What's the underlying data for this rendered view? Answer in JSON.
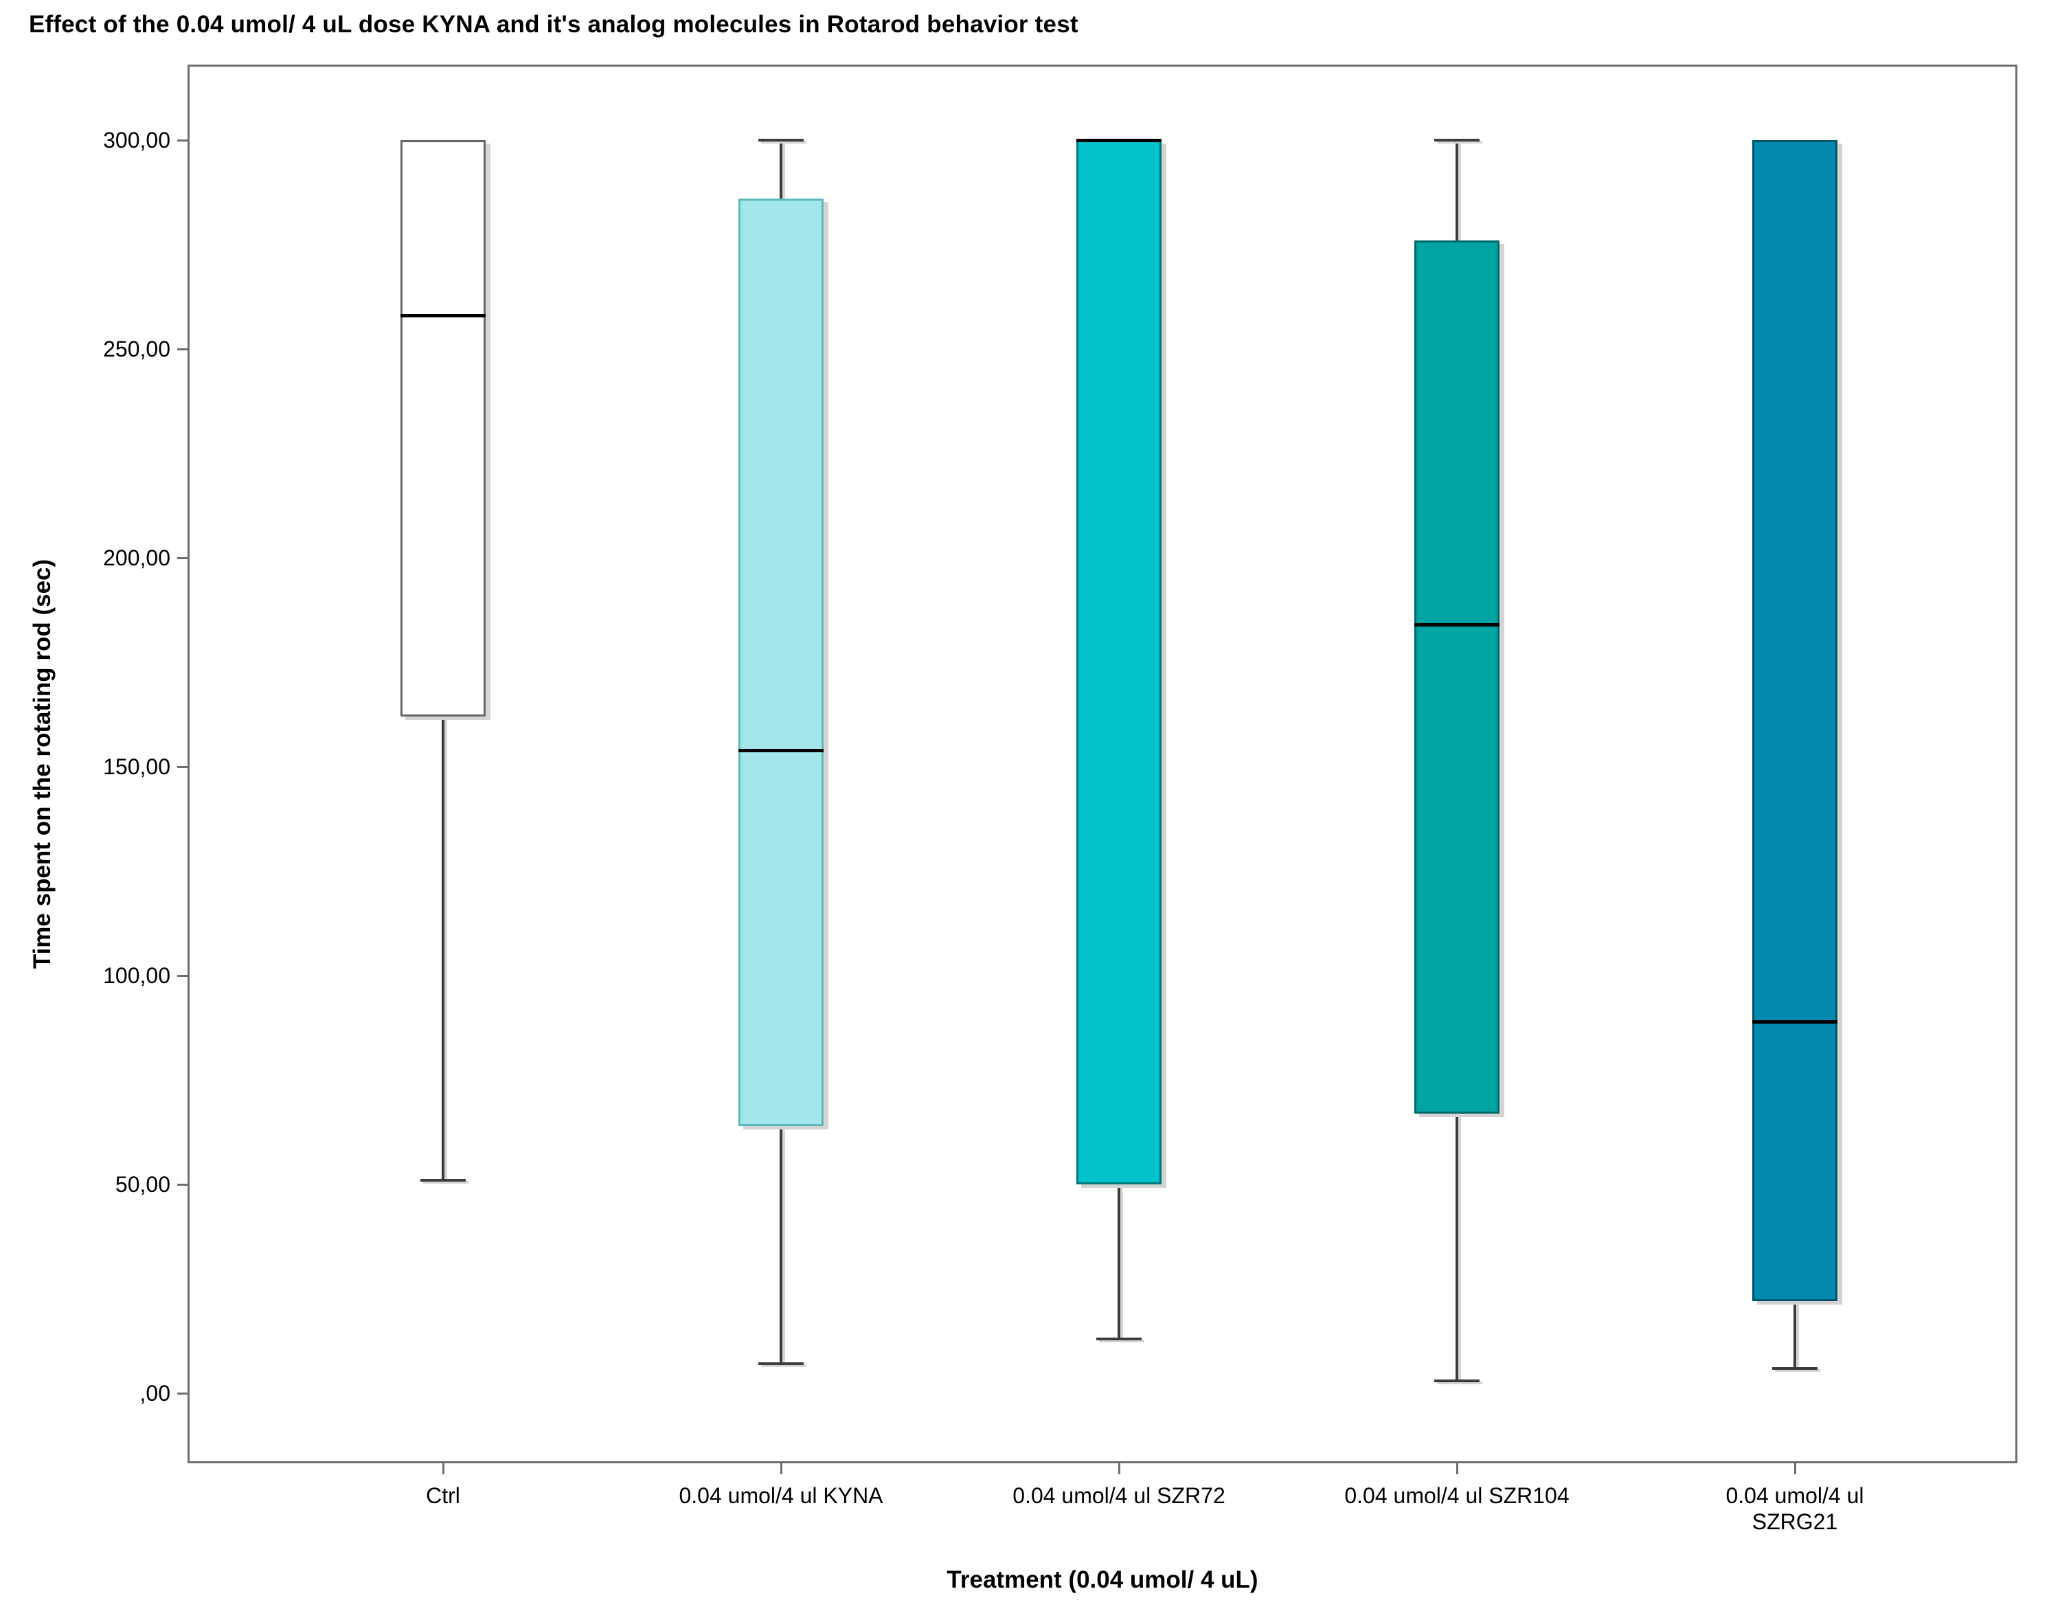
{
  "chart_data": {
    "type": "boxplot",
    "title": "Effect of the 0.04 umol/ 4 uL dose KYNA and it's analog molecules in Rotarod behavior test",
    "xlabel": "Treatment (0.04 umol/ 4 uL)",
    "ylabel": "Time spent on the rotating rod (sec)",
    "ylim": [
      0,
      300
    ],
    "grid": false,
    "legend": "none",
    "yticks": [
      {
        "value": 0,
        "label": ",00"
      },
      {
        "value": 50,
        "label": "50,00"
      },
      {
        "value": 100,
        "label": "100,00"
      },
      {
        "value": 150,
        "label": "150,00"
      },
      {
        "value": 200,
        "label": "200,00"
      },
      {
        "value": 250,
        "label": "250,00"
      },
      {
        "value": 300,
        "label": "300,00"
      }
    ],
    "categories": [
      "Ctrl",
      "0.04 umol/4 ul KYNA",
      "0.04 umol/4 ul SZR72",
      "0.04 umol/4 ul SZR104",
      "0.04 umol/4 ul\nSZRG21"
    ],
    "series": [
      {
        "name": "Ctrl",
        "min": 51,
        "q1": 162,
        "median": 258,
        "q3": 300,
        "max": 300,
        "fill": "#ffffff",
        "border": "#666666"
      },
      {
        "name": "0.04 umol/4 ul KYNA",
        "min": 7,
        "q1": 64,
        "median": 154,
        "q3": 286,
        "max": 300,
        "fill": "#a2e6e9",
        "border": "#5fb8bc"
      },
      {
        "name": "0.04 umol/4 ul SZR72",
        "min": 13,
        "q1": 50,
        "median": 300,
        "q3": 300,
        "max": 300,
        "fill": "#00c2c8",
        "border": "#00787d"
      },
      {
        "name": "0.04 umol/4 ul SZR104",
        "min": 3,
        "q1": 67,
        "median": 184,
        "q3": 276,
        "max": 300,
        "fill": "#00a4a4",
        "border": "#006a6a"
      },
      {
        "name": "0.04 umol/4 ul SZRG21",
        "min": 6,
        "q1": 22,
        "median": 89,
        "q3": 300,
        "max": 300,
        "fill": "#0489ae",
        "border": "#03546d"
      }
    ]
  }
}
